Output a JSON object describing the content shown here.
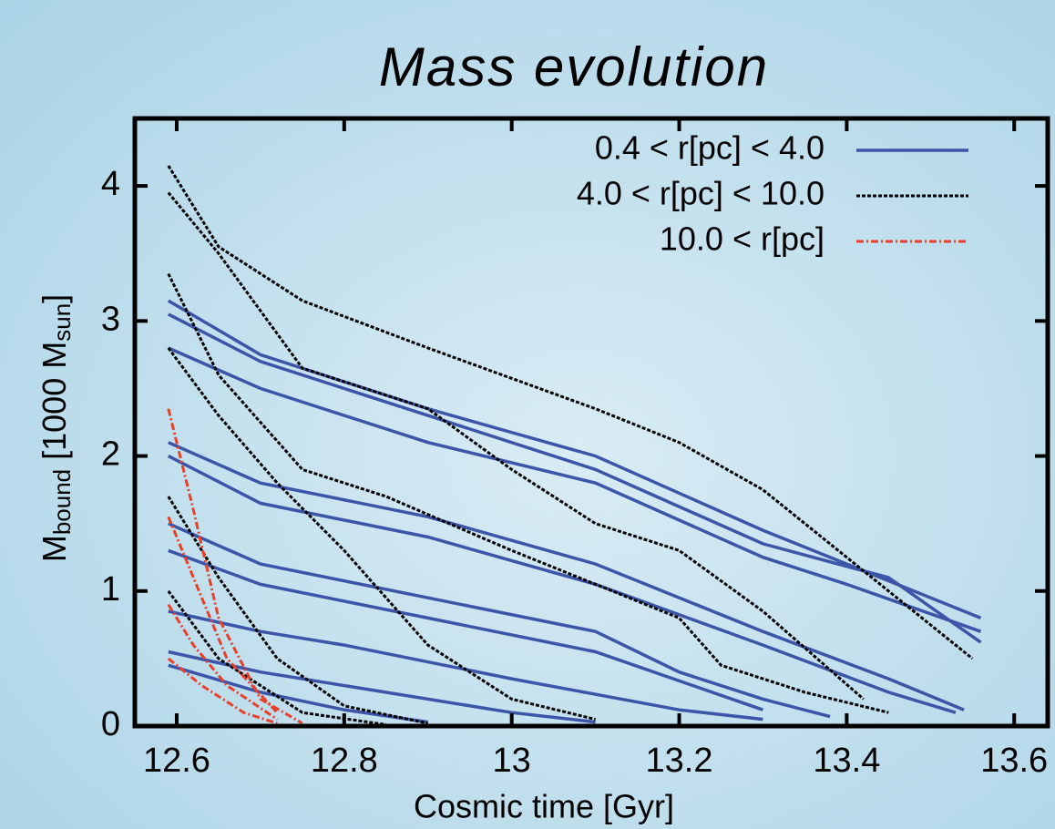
{
  "chart_data": {
    "type": "line",
    "title": "Mass evolution",
    "xlabel": "Cosmic time [Gyr]",
    "ylabel_parts": [
      "M",
      "bound",
      " [1000 M",
      "sun",
      "]"
    ],
    "xlim": [
      12.55,
      13.64
    ],
    "ylim": [
      0,
      4.5
    ],
    "xticks": [
      12.6,
      12.8,
      13,
      13.2,
      13.4,
      13.6
    ],
    "yticks": [
      0,
      1,
      2,
      3,
      4
    ],
    "legend": "upper-right",
    "series": [
      {
        "name": "0.4 < r[pc] < 4.0",
        "color": "#3d55a8",
        "dash": "solid",
        "lines": [
          {
            "x": [
              12.59,
              12.7,
              12.9,
              13.1,
              13.3,
              13.4,
              13.56
            ],
            "values": [
              3.15,
              2.75,
              2.35,
              2.0,
              1.45,
              1.2,
              0.8
            ]
          },
          {
            "x": [
              12.59,
              12.7,
              12.9,
              13.1,
              13.3,
              13.45,
              13.56
            ],
            "values": [
              3.05,
              2.7,
              2.3,
              1.9,
              1.35,
              1.1,
              0.62
            ]
          },
          {
            "x": [
              12.59,
              12.7,
              12.9,
              13.1,
              13.3,
              13.4,
              13.56
            ],
            "values": [
              2.8,
              2.5,
              2.1,
              1.8,
              1.25,
              1.05,
              0.7
            ]
          },
          {
            "x": [
              12.59,
              12.7,
              12.9,
              13.1,
              13.3,
              13.45,
              13.54
            ],
            "values": [
              2.1,
              1.8,
              1.55,
              1.2,
              0.7,
              0.35,
              0.12
            ]
          },
          {
            "x": [
              12.59,
              12.7,
              12.9,
              13.1,
              13.3,
              13.45,
              13.53
            ],
            "values": [
              2.0,
              1.65,
              1.4,
              1.05,
              0.6,
              0.25,
              0.1
            ]
          },
          {
            "x": [
              12.59,
              12.7,
              12.9,
              13.1,
              13.2,
              13.3,
              13.38
            ],
            "values": [
              1.5,
              1.2,
              0.95,
              0.7,
              0.4,
              0.2,
              0.07
            ]
          },
          {
            "x": [
              12.59,
              12.7,
              12.9,
              13.1,
              13.3
            ],
            "values": [
              1.3,
              1.05,
              0.8,
              0.55,
              0.12
            ]
          },
          {
            "x": [
              12.59,
              12.7,
              12.8,
              13.0,
              13.2,
              13.3
            ],
            "values": [
              0.85,
              0.7,
              0.6,
              0.35,
              0.12,
              0.05
            ]
          },
          {
            "x": [
              12.59,
              12.7,
              12.9,
              13.0,
              13.1
            ],
            "values": [
              0.55,
              0.4,
              0.2,
              0.1,
              0.03
            ]
          },
          {
            "x": [
              12.59,
              12.7,
              12.8,
              12.9
            ],
            "values": [
              0.45,
              0.25,
              0.12,
              0.03
            ]
          }
        ]
      },
      {
        "name": "4.0 < r[pc] < 10.0",
        "color": "#000000",
        "dash": "dotted",
        "lines": [
          {
            "x": [
              12.59,
              12.65,
              12.75,
              12.9,
              13.1,
              13.2,
              13.3,
              13.45,
              13.55
            ],
            "values": [
              4.15,
              3.55,
              3.15,
              2.8,
              2.35,
              2.1,
              1.75,
              1.0,
              0.5
            ]
          },
          {
            "x": [
              12.59,
              12.65,
              12.75,
              12.9,
              13.0,
              13.1,
              13.2,
              13.3,
              13.42
            ],
            "values": [
              3.95,
              3.5,
              2.65,
              2.35,
              1.9,
              1.5,
              1.3,
              0.85,
              0.2
            ]
          },
          {
            "x": [
              12.59,
              12.65,
              12.75,
              12.85,
              13.0,
              13.2,
              13.25,
              13.35,
              13.45
            ],
            "values": [
              3.35,
              2.6,
              1.9,
              1.7,
              1.3,
              0.8,
              0.45,
              0.25,
              0.1
            ]
          },
          {
            "x": [
              12.59,
              12.65,
              12.72,
              12.8,
              12.9,
              13.0,
              13.1
            ],
            "values": [
              2.8,
              2.3,
              1.8,
              1.3,
              0.6,
              0.2,
              0.05
            ]
          },
          {
            "x": [
              12.59,
              12.65,
              12.72,
              12.8,
              12.9
            ],
            "values": [
              1.7,
              1.1,
              0.5,
              0.15,
              0.02
            ]
          },
          {
            "x": [
              12.59,
              12.65,
              12.75,
              12.85
            ],
            "values": [
              1.0,
              0.5,
              0.1,
              0.01
            ]
          }
        ]
      },
      {
        "name": "10.0 < r[pc]",
        "color": "#e8402a",
        "dash": "dashdot",
        "lines": [
          {
            "x": [
              12.59,
              12.62,
              12.65,
              12.7,
              12.75
            ],
            "values": [
              2.35,
              1.6,
              0.8,
              0.2,
              0.02
            ]
          },
          {
            "x": [
              12.59,
              12.62,
              12.66,
              12.72
            ],
            "values": [
              1.55,
              1.1,
              0.5,
              0.1
            ]
          },
          {
            "x": [
              12.59,
              12.62,
              12.66,
              12.72
            ],
            "values": [
              0.9,
              0.6,
              0.3,
              0.05
            ]
          },
          {
            "x": [
              12.59,
              12.63,
              12.68,
              12.72
            ],
            "values": [
              0.5,
              0.3,
              0.1,
              0.02
            ]
          }
        ]
      }
    ]
  }
}
